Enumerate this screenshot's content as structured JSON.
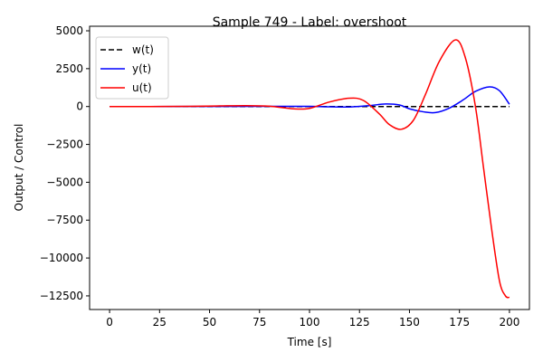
{
  "chart_data": {
    "type": "line",
    "title": "Sample 749 - Label: overshoot",
    "xlabel": "Time [s]",
    "ylabel": "Output / Control",
    "xlim": [
      -10,
      210
    ],
    "ylim": [
      -13400,
      5300
    ],
    "xticks": [
      0,
      25,
      50,
      75,
      100,
      125,
      150,
      175,
      200
    ],
    "yticks": [
      5000,
      2500,
      0,
      -2500,
      -5000,
      -7500,
      -10000,
      -12500
    ],
    "ytick_labels": [
      "5000",
      "2500",
      "0",
      "−2500",
      "−5000",
      "−7500",
      "−10000",
      "−12500"
    ],
    "grid": false,
    "legend_position": "upper-left",
    "series": [
      {
        "name": "w(t)",
        "color": "#000000",
        "style": "dashed",
        "x": [
          0,
          200
        ],
        "y": [
          0,
          0
        ]
      },
      {
        "name": "y(t)",
        "color": "#0000ff",
        "style": "solid",
        "x": [
          0,
          20,
          40,
          60,
          80,
          100,
          110,
          120,
          130,
          138,
          145,
          150,
          157,
          163,
          170,
          177,
          183,
          190,
          195,
          200
        ],
        "y": [
          0,
          0,
          2,
          8,
          15,
          10,
          -20,
          -30,
          60,
          170,
          100,
          -150,
          -350,
          -400,
          -100,
          450,
          1000,
          1300,
          1050,
          150
        ]
      },
      {
        "name": "u(t)",
        "color": "#ff0000",
        "style": "solid",
        "x": [
          0,
          20,
          40,
          55,
          68,
          80,
          92,
          100,
          110,
          120,
          127,
          135,
          140,
          146,
          152,
          158,
          165,
          173,
          178,
          183,
          187,
          191,
          195,
          198,
          200
        ],
        "y": [
          0,
          0,
          10,
          40,
          60,
          20,
          -150,
          -120,
          300,
          550,
          400,
          -500,
          -1200,
          -1500,
          -900,
          800,
          3000,
          4400,
          3200,
          0,
          -4000,
          -8000,
          -11500,
          -12500,
          -12600
        ]
      }
    ]
  }
}
